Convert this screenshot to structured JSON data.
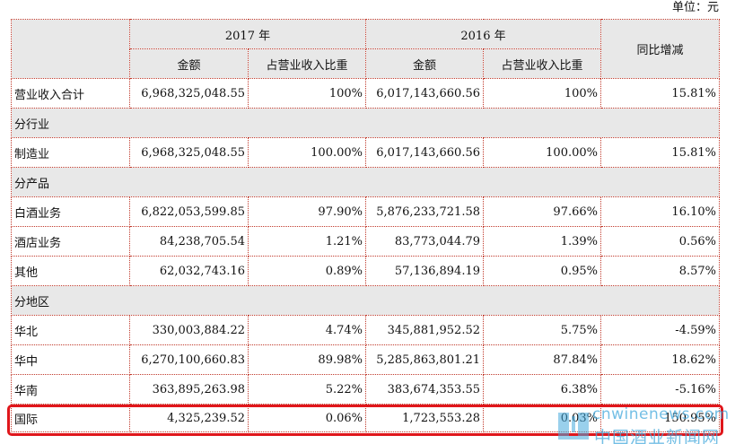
{
  "unit_label": "单位：元",
  "header": {
    "year_2017": "2017 年",
    "year_2016": "2016 年",
    "yoy": "同比增减",
    "amount": "金额",
    "share": "占营业收入比重"
  },
  "rows": {
    "total": {
      "label": "营业收入合计",
      "amt17": "6,968,325,048.55",
      "pct17": "100%",
      "amt16": "6,017,143,660.56",
      "pct16": "100%",
      "yoy": "15.81%"
    },
    "sec_industry": "分行业",
    "manufacturing": {
      "label": "制造业",
      "amt17": "6,968,325,048.55",
      "pct17": "100.00%",
      "amt16": "6,017,143,660.56",
      "pct16": "100.00%",
      "yoy": "15.81%"
    },
    "sec_product": "分产品",
    "baijiu": {
      "label": "白酒业务",
      "amt17": "6,822,053,599.85",
      "pct17": "97.90%",
      "amt16": "5,876,233,721.58",
      "pct16": "97.66%",
      "yoy": "16.10%"
    },
    "hotel": {
      "label": "酒店业务",
      "amt17": "84,238,705.54",
      "pct17": "1.21%",
      "amt16": "83,773,044.79",
      "pct16": "1.39%",
      "yoy": "0.56%"
    },
    "other": {
      "label": "其他",
      "amt17": "62,032,743.16",
      "pct17": "0.89%",
      "amt16": "57,136,894.19",
      "pct16": "0.95%",
      "yoy": "8.57%"
    },
    "sec_region": "分地区",
    "north": {
      "label": "华北",
      "amt17": "330,003,884.22",
      "pct17": "4.74%",
      "amt16": "345,881,952.52",
      "pct16": "5.75%",
      "yoy": "-4.59%"
    },
    "central": {
      "label": "华中",
      "amt17": "6,270,100,660.83",
      "pct17": "89.98%",
      "amt16": "5,285,863,801.21",
      "pct16": "87.84%",
      "yoy": "18.62%"
    },
    "south": {
      "label": "华南",
      "amt17": "363,895,263.98",
      "pct17": "5.22%",
      "amt16": "383,674,353.55",
      "pct16": "6.38%",
      "yoy": "-5.16%"
    },
    "intl": {
      "label": "国际",
      "amt17": "4,325,239.52",
      "pct17": "0.06%",
      "amt16": "1,723,553.28",
      "pct16": "0.03%",
      "yoy": "150.95%"
    }
  },
  "watermark": {
    "url": "cnwinenews.com",
    "cn": "中国酒业新闻网"
  },
  "colors": {
    "border": "#c0392b",
    "header_bg": "#e8e8e8",
    "highlight": "#e0161b",
    "watermark": "#46aadc"
  }
}
